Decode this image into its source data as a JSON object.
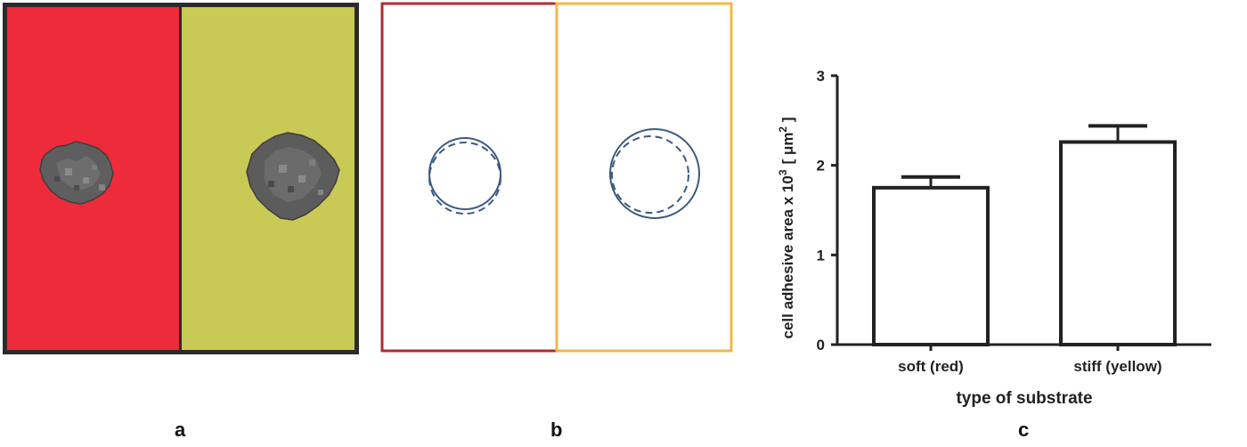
{
  "panels": {
    "a": {
      "letter": "a"
    },
    "b": {
      "letter": "b"
    },
    "c": {
      "letter": "c"
    }
  },
  "colors": {
    "soft": "#ee2b3a",
    "stiff": "#c9c955",
    "frame": "#2b2b2b",
    "outline_soft": "#b22a35",
    "outline_stiff": "#f0b84a",
    "circle": "#3d5a80",
    "axis": "#222222"
  },
  "chart_data": {
    "type": "bar",
    "categories": [
      "soft (red)",
      "stiff (yellow)"
    ],
    "values": [
      1.75,
      2.26
    ],
    "error": [
      0.12,
      0.18
    ],
    "xlabel": "type of substrate",
    "ylabel_parts": {
      "main": "cell adhesive area x 10",
      "sup1": "3",
      "bracket_open": "[ μm",
      "sup2": "2",
      "bracket_close": " ]"
    },
    "ylim": [
      0,
      3
    ],
    "yticks": [
      "0",
      "1",
      "2",
      "3"
    ],
    "grid": false
  }
}
